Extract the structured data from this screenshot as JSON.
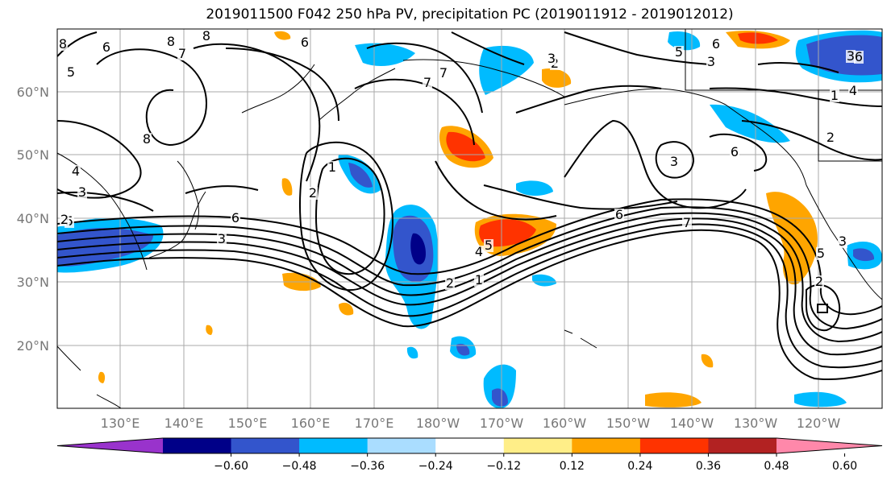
{
  "title": "2019011500 F042 250 hPa PV, precipitation PC (2019011912 - 2019012012)",
  "lat_labels": [
    "60°N",
    "50°N",
    "40°N",
    "30°N",
    "20°N"
  ],
  "lon_labels": [
    "130°E",
    "140°E",
    "150°E",
    "160°E",
    "170°E",
    "180°W",
    "170°W",
    "160°W",
    "150°W",
    "140°W",
    "130°W",
    "120°W"
  ],
  "colorbar": {
    "tick_labels": [
      "−0.60",
      "−0.48",
      "−0.36",
      "−0.24",
      "−0.12",
      "0.12",
      "0.24",
      "0.36",
      "0.48",
      "0.60"
    ],
    "colors": [
      "#9933cc",
      "#000088",
      "#3355cc",
      "#00bbff",
      "#aaddff",
      "#ffffff",
      "#ffee88",
      "#ffa500",
      "#ff3300",
      "#b22222",
      "#ff88aa"
    ]
  },
  "contour_labels": [
    "8",
    "6",
    "7",
    "5",
    "4",
    "3",
    "8",
    "7",
    "2",
    "1",
    "3",
    "6",
    "5",
    "7",
    "6",
    "3",
    "2",
    "1",
    "5",
    "4",
    "3",
    "2",
    "1",
    "6",
    "7",
    "3",
    "6",
    "5",
    "3",
    "4",
    "2",
    "3",
    "6",
    "8",
    "2",
    "5",
    "6",
    "8",
    "2"
  ]
}
